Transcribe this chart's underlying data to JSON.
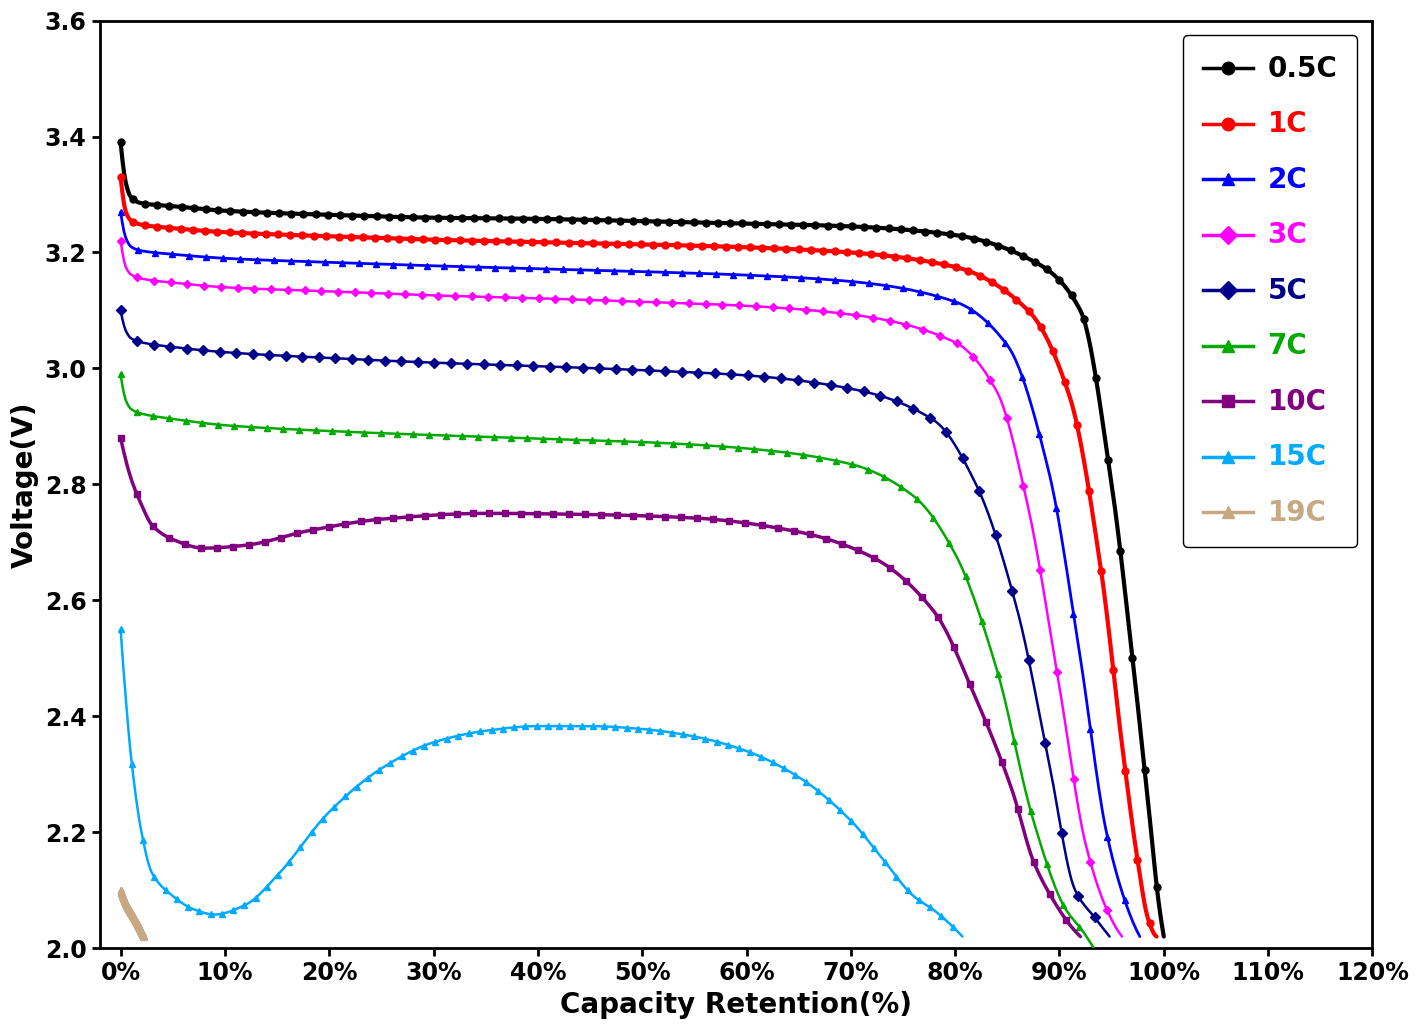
{
  "xlabel": "Capacity Retention(%)",
  "ylabel": "Voltage(V)",
  "xlim": [
    -0.02,
    0.122
  ],
  "ylim": [
    2.0,
    3.6
  ],
  "xticks": [
    0.0,
    0.1,
    0.2,
    0.3,
    0.4,
    0.5,
    0.6,
    0.7,
    0.8,
    0.9,
    1.0,
    1.1,
    1.2
  ],
  "yticks": [
    2.0,
    2.2,
    2.4,
    2.6,
    2.8,
    3.0,
    3.2,
    3.4,
    3.6
  ],
  "series": [
    {
      "label": "0.5C",
      "color": "#000000",
      "marker": "o",
      "markersize": 5,
      "linewidth": 3.0,
      "x_pts": [
        0.0,
        0.005,
        0.01,
        0.02,
        0.05,
        0.1,
        0.2,
        0.3,
        0.4,
        0.5,
        0.6,
        0.7,
        0.8,
        0.88,
        0.92,
        0.95,
        0.97,
        0.985,
        0.995,
        1.0
      ],
      "v_pts": [
        3.39,
        3.32,
        3.295,
        3.285,
        3.28,
        3.272,
        3.265,
        3.26,
        3.258,
        3.254,
        3.25,
        3.245,
        3.23,
        3.18,
        3.1,
        2.8,
        2.5,
        2.25,
        2.08,
        2.02
      ]
    },
    {
      "label": "1C",
      "color": "#ff0000",
      "marker": "o",
      "markersize": 5,
      "linewidth": 3.0,
      "x_pts": [
        0.0,
        0.005,
        0.01,
        0.02,
        0.05,
        0.1,
        0.2,
        0.3,
        0.4,
        0.5,
        0.6,
        0.7,
        0.8,
        0.87,
        0.91,
        0.94,
        0.96,
        0.975,
        0.985,
        0.993
      ],
      "v_pts": [
        3.33,
        3.27,
        3.255,
        3.248,
        3.242,
        3.235,
        3.228,
        3.222,
        3.218,
        3.214,
        3.209,
        3.2,
        3.175,
        3.1,
        2.95,
        2.65,
        2.35,
        2.15,
        2.05,
        2.02
      ]
    },
    {
      "label": "2C",
      "color": "#0000ff",
      "marker": "^",
      "markersize": 5,
      "linewidth": 2.0,
      "x_pts": [
        0.0,
        0.005,
        0.01,
        0.02,
        0.05,
        0.1,
        0.2,
        0.3,
        0.4,
        0.5,
        0.6,
        0.7,
        0.8,
        0.85,
        0.89,
        0.92,
        0.945,
        0.965,
        0.977
      ],
      "v_pts": [
        3.27,
        3.225,
        3.21,
        3.203,
        3.197,
        3.19,
        3.183,
        3.177,
        3.172,
        3.167,
        3.161,
        3.15,
        3.115,
        3.04,
        2.82,
        2.5,
        2.2,
        2.07,
        2.02
      ]
    },
    {
      "label": "3C",
      "color": "#ff00ff",
      "marker": "D",
      "markersize": 4,
      "linewidth": 1.8,
      "x_pts": [
        0.0,
        0.005,
        0.01,
        0.02,
        0.05,
        0.1,
        0.2,
        0.3,
        0.4,
        0.5,
        0.6,
        0.7,
        0.8,
        0.84,
        0.87,
        0.9,
        0.925,
        0.947,
        0.96
      ],
      "v_pts": [
        3.22,
        3.175,
        3.162,
        3.155,
        3.148,
        3.14,
        3.133,
        3.126,
        3.121,
        3.115,
        3.108,
        3.093,
        3.045,
        2.96,
        2.76,
        2.45,
        2.18,
        2.06,
        2.02
      ]
    },
    {
      "label": "5C",
      "color": "#00008b",
      "marker": "D",
      "markersize": 5,
      "linewidth": 1.8,
      "x_pts": [
        0.0,
        0.005,
        0.01,
        0.02,
        0.05,
        0.1,
        0.2,
        0.3,
        0.4,
        0.5,
        0.6,
        0.7,
        0.78,
        0.82,
        0.86,
        0.89,
        0.915,
        0.935,
        0.948
      ],
      "v_pts": [
        3.1,
        3.065,
        3.052,
        3.045,
        3.037,
        3.028,
        3.018,
        3.01,
        3.004,
        2.997,
        2.988,
        2.965,
        2.91,
        2.8,
        2.58,
        2.32,
        2.1,
        2.05,
        2.02
      ]
    },
    {
      "label": "7C",
      "color": "#00aa00",
      "marker": "^",
      "markersize": 5,
      "linewidth": 1.8,
      "x_pts": [
        0.0,
        0.005,
        0.01,
        0.02,
        0.05,
        0.1,
        0.2,
        0.3,
        0.4,
        0.5,
        0.6,
        0.7,
        0.76,
        0.8,
        0.84,
        0.875,
        0.905,
        0.922,
        0.933
      ],
      "v_pts": [
        2.99,
        2.945,
        2.93,
        2.922,
        2.913,
        2.902,
        2.892,
        2.885,
        2.879,
        2.873,
        2.862,
        2.835,
        2.78,
        2.68,
        2.48,
        2.22,
        2.07,
        2.03,
        2.0
      ]
    },
    {
      "label": "10C",
      "color": "#800080",
      "marker": "s",
      "markersize": 5,
      "linewidth": 2.5,
      "x_pts": [
        0.0,
        0.01,
        0.02,
        0.03,
        0.05,
        0.08,
        0.12,
        0.18,
        0.25,
        0.35,
        0.45,
        0.55,
        0.65,
        0.72,
        0.78,
        0.82,
        0.855,
        0.875,
        0.895,
        0.91,
        0.92
      ],
      "v_pts": [
        2.88,
        2.81,
        2.765,
        2.73,
        2.705,
        2.69,
        2.695,
        2.72,
        2.74,
        2.75,
        2.748,
        2.742,
        2.718,
        2.675,
        2.58,
        2.43,
        2.27,
        2.15,
        2.08,
        2.04,
        2.02
      ]
    },
    {
      "label": "15C",
      "color": "#00aaff",
      "marker": "^",
      "markersize": 4,
      "linewidth": 1.8,
      "x_pts": [
        0.0,
        0.005,
        0.01,
        0.02,
        0.03,
        0.05,
        0.07,
        0.09,
        0.12,
        0.15,
        0.2,
        0.25,
        0.3,
        0.35,
        0.4,
        0.45,
        0.5,
        0.55,
        0.6,
        0.65,
        0.7,
        0.73,
        0.76,
        0.78,
        0.796,
        0.807
      ],
      "v_pts": [
        2.55,
        2.43,
        2.33,
        2.2,
        2.13,
        2.09,
        2.067,
        2.058,
        2.075,
        2.125,
        2.235,
        2.31,
        2.355,
        2.375,
        2.383,
        2.383,
        2.378,
        2.365,
        2.34,
        2.295,
        2.22,
        2.155,
        2.09,
        2.065,
        2.04,
        2.02
      ]
    },
    {
      "label": "19C",
      "color": "#c8a882",
      "marker": "^",
      "markersize": 5,
      "linewidth": 1.5,
      "x_pts": [
        0.0,
        0.003,
        0.007,
        0.012,
        0.018,
        0.022
      ],
      "v_pts": [
        2.1,
        2.085,
        2.07,
        2.055,
        2.035,
        2.02
      ]
    }
  ],
  "legend_colors": [
    "#000000",
    "#ff0000",
    "#0000ff",
    "#ff00ff",
    "#00008b",
    "#00aa00",
    "#800080",
    "#00aaff",
    "#c8a882"
  ],
  "legend_markers": [
    "o",
    "o",
    "^",
    "D",
    "D",
    "^",
    "s",
    "^",
    "^"
  ],
  "legend_labels": [
    "0.5C",
    "1C",
    "2C",
    "3C",
    "5C",
    "7C",
    "10C",
    "15C",
    "19C"
  ]
}
